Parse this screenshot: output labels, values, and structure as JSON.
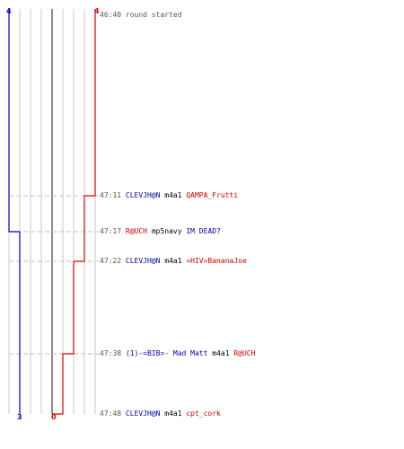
{
  "scores": {
    "blue_start": "4",
    "red_start": "4",
    "blue_end": "3",
    "red_end": "0"
  },
  "colors": {
    "blue": "#0000cc",
    "red": "#dd0000",
    "grid": "#c8c8c8",
    "center": "#666666",
    "dash": "#c0c0c0"
  },
  "events": [
    {
      "time": "46:40",
      "parts": [
        {
          "text": "round started",
          "color": "gray"
        }
      ]
    },
    {
      "time": "47:11",
      "parts": [
        {
          "text": "CLEVJH@N",
          "color": "blue"
        },
        {
          "text": " m4a1 ",
          "color": "black"
        },
        {
          "text": "QAMPA_Frutti",
          "color": "red"
        }
      ]
    },
    {
      "time": "47:17",
      "parts": [
        {
          "text": "R@UCH",
          "color": "red"
        },
        {
          "text": " mp5navy ",
          "color": "black"
        },
        {
          "text": "IM DEAD?",
          "color": "blue"
        }
      ]
    },
    {
      "time": "47:22",
      "parts": [
        {
          "text": "CLEVJH@N",
          "color": "blue"
        },
        {
          "text": " m4a1 ",
          "color": "black"
        },
        {
          "text": "=HIV=BananaJoe",
          "color": "red"
        }
      ]
    },
    {
      "time": "47:38",
      "parts": [
        {
          "text": "(1)-=BIB=- Mad Matt",
          "color": "blue"
        },
        {
          "text": " m4a1 ",
          "color": "black"
        },
        {
          "text": "R@UCH",
          "color": "red"
        }
      ]
    },
    {
      "time": "47:48",
      "parts": [
        {
          "text": "CLEVJH@N",
          "color": "blue"
        },
        {
          "text": " m4a1 ",
          "color": "black"
        },
        {
          "text": "cpt_cork",
          "color": "red"
        }
      ]
    }
  ]
}
